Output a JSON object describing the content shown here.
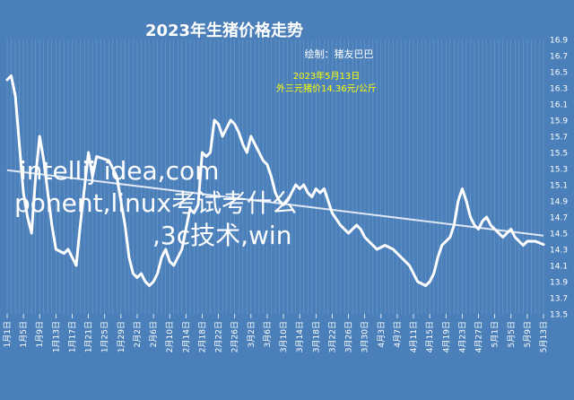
{
  "chart_data": {
    "type": "line",
    "title": "2023年生猪价格走势",
    "subtitle": "绘制：猪友巴巴",
    "annotation": {
      "line1": "2023年5月13日",
      "line2": "外三元猪价14.36元/公斤"
    },
    "watermark": [
      "intellij idea,com",
      "ponent,linux考试考什么",
      ",3c技术,win"
    ],
    "colors": {
      "background": "#4a7fb9",
      "line": "#ffffff",
      "annotation": "#ffff00",
      "watermark": "#ffffff",
      "trend": "#dfe8f4",
      "grid": "#7fa6d3"
    },
    "y_axis": {
      "ylim": [
        13.5,
        16.9
      ],
      "ticks": [
        "16.9",
        "16.7",
        "16.5",
        "16.3",
        "16.1",
        "15.9",
        "15.7",
        "15.5",
        "15.3",
        "15.1",
        "14.9",
        "14.7",
        "14.5",
        "14.3",
        "14.1",
        "13.9",
        "13.7",
        "13.5"
      ],
      "tick_values": [
        16.9,
        16.7,
        16.5,
        16.3,
        16.1,
        15.9,
        15.7,
        15.5,
        15.3,
        15.1,
        14.9,
        14.7,
        14.5,
        14.3,
        14.1,
        13.9,
        13.7,
        13.5
      ]
    },
    "x_axis": {
      "start_date": "2023-01-01",
      "end_date": "2023-05-13",
      "tick_labels": [
        "1月1日",
        "1月5日",
        "1月9日",
        "1月13日",
        "1月17日",
        "1月21日",
        "1月25日",
        "1月29日",
        "2月2日",
        "2月6日",
        "2月10日",
        "2月14日",
        "2月18日",
        "2月22日",
        "2月26日",
        "3月2日",
        "3月6日",
        "3月10日",
        "3月14日",
        "3月18日",
        "3月22日",
        "3月26日",
        "3月30日",
        "4月3日",
        "4月7日",
        "4月11日",
        "4月15日",
        "4月19日",
        "4月23日",
        "4月27日",
        "5月1日",
        "5月5日",
        "5月9日",
        "5月13日"
      ]
    },
    "series": [
      {
        "x": [
          "2023-01-01",
          "2023-01-02",
          "2023-01-03",
          "2023-01-04",
          "2023-01-05",
          "2023-01-06",
          "2023-01-07",
          "2023-01-08",
          "2023-01-09",
          "2023-01-10",
          "2023-01-11",
          "2023-01-12",
          "2023-01-13",
          "2023-01-15",
          "2023-01-16",
          "2023-01-17",
          "2023-01-18",
          "2023-01-19",
          "2023-01-21",
          "2023-01-22",
          "2023-01-23",
          "2023-01-26",
          "2023-01-28",
          "2023-01-29",
          "2023-01-30",
          "2023-01-31",
          "2023-02-01",
          "2023-02-02",
          "2023-02-03",
          "2023-02-04",
          "2023-02-05",
          "2023-02-06",
          "2023-02-07",
          "2023-02-08",
          "2023-02-09",
          "2023-02-10",
          "2023-02-11",
          "2023-02-12",
          "2023-02-13",
          "2023-02-14",
          "2023-02-15",
          "2023-02-16",
          "2023-02-17",
          "2023-02-18",
          "2023-02-19",
          "2023-02-20",
          "2023-02-21",
          "2023-02-22",
          "2023-02-23",
          "2023-02-24",
          "2023-02-25",
          "2023-02-26",
          "2023-02-27",
          "2023-02-28",
          "2023-03-01",
          "2023-03-02",
          "2023-03-03",
          "2023-03-04",
          "2023-03-05",
          "2023-03-06",
          "2023-03-07",
          "2023-03-08",
          "2023-03-09",
          "2023-03-10",
          "2023-03-11",
          "2023-03-12",
          "2023-03-13",
          "2023-03-14",
          "2023-03-15",
          "2023-03-16",
          "2023-03-17",
          "2023-03-18",
          "2023-03-19",
          "2023-03-20",
          "2023-03-21",
          "2023-03-22",
          "2023-03-24",
          "2023-03-26",
          "2023-03-28",
          "2023-03-29",
          "2023-03-30",
          "2023-04-01",
          "2023-04-02",
          "2023-04-04",
          "2023-04-06",
          "2023-04-08",
          "2023-04-10",
          "2023-04-12",
          "2023-04-14",
          "2023-04-15",
          "2023-04-16",
          "2023-04-17",
          "2023-04-18",
          "2023-04-19",
          "2023-04-20",
          "2023-04-21",
          "2023-04-22",
          "2023-04-23",
          "2023-04-24",
          "2023-04-25",
          "2023-04-26",
          "2023-04-27",
          "2023-04-28",
          "2023-04-29",
          "2023-04-30",
          "2023-05-01",
          "2023-05-02",
          "2023-05-03",
          "2023-05-04",
          "2023-05-05",
          "2023-05-06",
          "2023-05-07",
          "2023-05-08",
          "2023-05-09",
          "2023-05-10",
          "2023-05-11",
          "2023-05-12",
          "2023-05-13"
        ],
        "values": [
          16.4,
          16.45,
          16.2,
          15.6,
          15.0,
          14.7,
          14.5,
          15.2,
          15.7,
          15.4,
          15.0,
          14.6,
          14.3,
          14.25,
          14.3,
          14.2,
          14.1,
          14.6,
          15.5,
          15.2,
          15.45,
          15.4,
          15.2,
          14.9,
          14.6,
          14.2,
          14.0,
          13.95,
          14.0,
          13.9,
          13.85,
          13.9,
          14.0,
          14.2,
          14.3,
          14.15,
          14.1,
          14.2,
          14.3,
          14.55,
          14.8,
          14.75,
          14.85,
          15.5,
          15.45,
          15.5,
          15.9,
          15.85,
          15.7,
          15.8,
          15.9,
          15.85,
          15.75,
          15.6,
          15.5,
          15.7,
          15.6,
          15.5,
          15.4,
          15.35,
          15.2,
          15.0,
          14.9,
          14.85,
          14.9,
          15.0,
          15.1,
          15.05,
          15.1,
          15.0,
          14.95,
          15.05,
          15.0,
          15.05,
          14.9,
          14.75,
          14.6,
          14.5,
          14.6,
          14.55,
          14.45,
          14.35,
          14.3,
          14.35,
          14.3,
          14.2,
          14.1,
          13.9,
          13.85,
          13.9,
          14.0,
          14.2,
          14.35,
          14.4,
          14.45,
          14.6,
          14.9,
          15.05,
          14.9,
          14.7,
          14.6,
          14.55,
          14.65,
          14.7,
          14.6,
          14.55,
          14.5,
          14.45,
          14.5,
          14.55,
          14.45,
          14.4,
          14.35,
          14.4,
          14.4,
          14.4,
          14.38,
          14.36
        ]
      }
    ],
    "trend": {
      "x": [
        "2023-01-01",
        "2023-05-13"
      ],
      "values": [
        15.28,
        14.47
      ]
    }
  }
}
